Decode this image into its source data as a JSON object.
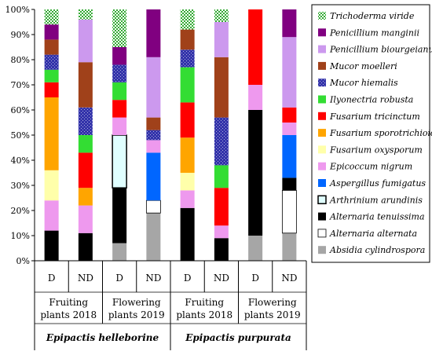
{
  "chart_data": {
    "type": "bar",
    "stacked": true,
    "ylim": [
      0,
      100
    ],
    "y_ticks": [
      "0%",
      "10%",
      "20%",
      "30%",
      "40%",
      "50%",
      "60%",
      "70%",
      "80%",
      "90%",
      "100%"
    ],
    "categories": [
      "D",
      "ND",
      "D",
      "ND",
      "D",
      "ND",
      "D",
      "ND"
    ],
    "groups": [
      {
        "label_line1": "Fruiting",
        "label_line2": "plants 2018"
      },
      {
        "label_line1": "Flowering",
        "label_line2": "plants 2019"
      },
      {
        "label_line1": "Fruiting",
        "label_line2": "plants 2018"
      },
      {
        "label_line1": "Flowering",
        "label_line2": "plants 2019"
      }
    ],
    "species": [
      "Epipactis helleborine",
      "Epipactis purpurata"
    ],
    "series": [
      {
        "name": "Absidia cylindrospora",
        "color": "#a6a6a6",
        "pattern": "solid",
        "values": [
          0,
          0,
          7,
          19,
          0,
          0,
          10,
          11
        ]
      },
      {
        "name": "Alternaria alternata",
        "color": "#ffffff",
        "pattern": "solid",
        "values": [
          0,
          0,
          0,
          5,
          0,
          0,
          0,
          17
        ]
      },
      {
        "name": "Alternaria tenuissima",
        "color": "#000000",
        "pattern": "solid",
        "values": [
          12,
          11,
          22,
          0,
          21,
          9,
          50,
          5
        ]
      },
      {
        "name": "Arthrinium arundinis",
        "color": "#e0ffff",
        "pattern": "solid",
        "values": [
          0,
          0,
          21,
          0,
          0,
          0,
          0,
          0
        ]
      },
      {
        "name": "Aspergillus fumigatus",
        "color": "#0066ff",
        "pattern": "solid",
        "values": [
          0,
          0,
          0,
          19,
          0,
          0,
          0,
          17
        ]
      },
      {
        "name": "Epicoccum nigrum",
        "color": "#ee99ee",
        "pattern": "solid",
        "values": [
          12,
          11,
          7,
          5,
          7,
          5,
          10,
          5
        ]
      },
      {
        "name": "Fusarium oxysporum",
        "color": "#ffffaa",
        "pattern": "solid",
        "values": [
          12,
          0,
          0,
          0,
          7,
          0,
          0,
          0
        ]
      },
      {
        "name": "Fusarium sporotrichioides",
        "color": "#ffa500",
        "pattern": "solid",
        "values": [
          29,
          7,
          0,
          0,
          14,
          0,
          0,
          0
        ]
      },
      {
        "name": "Fusarium tricinctum",
        "color": "#ff0000",
        "pattern": "solid",
        "values": [
          6,
          14,
          7,
          0,
          14,
          15,
          30,
          6
        ]
      },
      {
        "name": "Ilyonectria robusta",
        "color": "#33dd33",
        "pattern": "solid",
        "values": [
          5,
          7,
          7,
          0,
          14,
          9,
          0,
          0
        ]
      },
      {
        "name": "Mucor hiemalis",
        "color": "#3333aa",
        "pattern": "dots",
        "values": [
          6,
          11,
          7,
          4,
          7,
          19,
          0,
          0
        ]
      },
      {
        "name": "Mucor moelleri",
        "color": "#a0411a",
        "pattern": "solid",
        "values": [
          6,
          18,
          0,
          5,
          8,
          24,
          0,
          0
        ]
      },
      {
        "name": "Penicillium biourgeianum",
        "color": "#cc99ee",
        "pattern": "solid",
        "values": [
          0,
          17,
          0,
          24,
          0,
          14,
          0,
          28
        ]
      },
      {
        "name": "Penicillium manginii",
        "color": "#800080",
        "pattern": "solid",
        "values": [
          6,
          0,
          7,
          19,
          0,
          0,
          0,
          11
        ]
      },
      {
        "name": "Trichoderma viride",
        "color": "#33aa33",
        "pattern": "checker",
        "values": [
          6,
          4,
          15,
          0,
          8,
          5,
          0,
          0
        ]
      }
    ]
  }
}
